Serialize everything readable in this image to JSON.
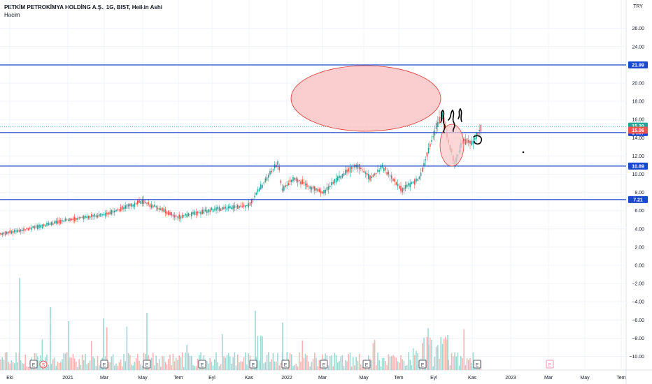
{
  "header": {
    "title": "PETKİM PETROKİMYA HOLDİNG A.Ş., 1G, BIST, Heikin Ashi",
    "volume_label": "Hacim"
  },
  "colors": {
    "up": "#26a69a",
    "down": "#ef5350",
    "hline": "#1848cc",
    "ellipse_fill": "#f9c6c6",
    "ellipse_stroke": "#e03a3a",
    "grid": "#f0f3fa",
    "axis_text": "#131722"
  },
  "chart_data": {
    "type": "candlestick",
    "title": "PETKİM PETROKİMYA HOLDİNG A.Ş., 1G, BIST, Heikin Ashi",
    "y_axis": {
      "currency": "TRY",
      "ticks": [
        "26.00",
        "24.00",
        "22.00",
        "20.00",
        "18.00",
        "16.00",
        "14.00",
        "12.00",
        "10.00",
        "8.00",
        "6.00",
        "4.00",
        "2.00",
        "0.00",
        "−2.00",
        "−4.00",
        "−6.00",
        "−8.00",
        "−10.00"
      ],
      "range": [
        -11,
        27.5
      ]
    },
    "x_axis": {
      "ticks": [
        "Eki",
        "2021",
        "Mar",
        "May",
        "Tem",
        "Eyl",
        "Kas",
        "2022",
        "Mar",
        "May",
        "Tem",
        "Eyl",
        "Kas",
        "2023",
        "Mar",
        "May",
        "Tem"
      ]
    },
    "horizontal_lines": [
      {
        "value": 21.99,
        "label": "21.99"
      },
      {
        "value": 14.57,
        "label": "14.57"
      },
      {
        "value": 10.89,
        "label": "10.89"
      },
      {
        "value": 7.21,
        "label": "7.21"
      }
    ],
    "price_labels": [
      {
        "value": 15.2,
        "label": "15.20",
        "kind": "up"
      },
      {
        "value": 15.06,
        "label": "15.06",
        "kind": "down"
      }
    ],
    "price_path": [
      [
        "Eki",
        3.5
      ],
      [
        "2021",
        5.0
      ],
      [
        "Mar",
        5.5
      ],
      [
        "May",
        7.0
      ],
      [
        "Tem",
        5.2
      ],
      [
        "Eyl",
        6.0
      ],
      [
        "Kas",
        6.5
      ],
      [
        "Kas",
        9.0
      ],
      [
        "2022",
        11.5
      ],
      [
        "2022",
        8.0
      ],
      [
        "2022",
        9.5
      ],
      [
        "Mar",
        8.0
      ],
      [
        "Mar",
        10.0
      ],
      [
        "May",
        11.0
      ],
      [
        "May",
        9.5
      ],
      [
        "Tem",
        8.5
      ],
      [
        "Tem",
        9.5
      ],
      [
        "Eyl",
        13.5
      ],
      [
        "Eyl",
        16.0
      ],
      [
        "Eyl",
        14.5
      ],
      [
        "Eyl",
        12.0
      ],
      [
        "Kas",
        13.5
      ],
      [
        "Kas",
        15.2
      ]
    ],
    "events": [
      "E",
      "S",
      "E",
      "E",
      "E",
      "E",
      "E",
      "E",
      "E",
      "E",
      "E"
    ],
    "volume_label": "Hacim"
  }
}
